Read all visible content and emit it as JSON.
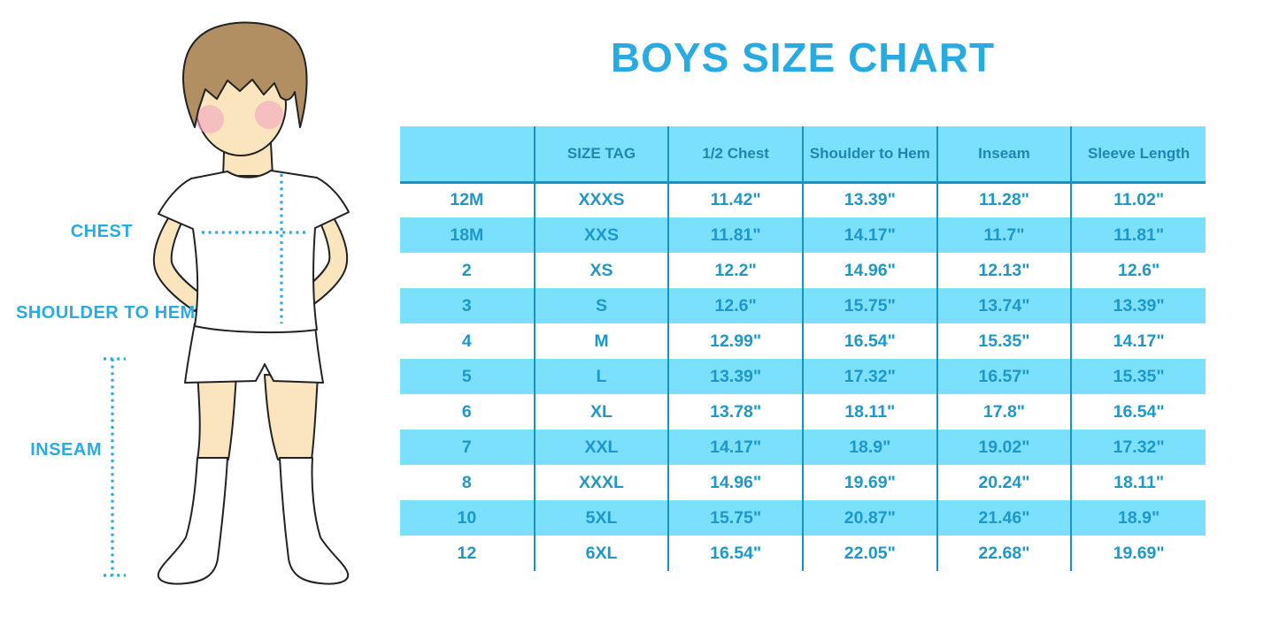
{
  "title": "BOYS SIZE CHART",
  "figure_labels": {
    "chest": "CHEST",
    "shoulder_to_hem": "SHOULDER TO HEM",
    "inseam": "INSEAM"
  },
  "chart_data": {
    "type": "table",
    "title": "BOYS SIZE CHART",
    "columns": [
      "",
      "SIZE TAG",
      "1/2 Chest",
      "Shoulder to Hem",
      "Inseam",
      "Sleeve Length"
    ],
    "rows": [
      [
        "12M",
        "XXXS",
        "11.42\"",
        "13.39\"",
        "11.28\"",
        "11.02\""
      ],
      [
        "18M",
        "XXS",
        "11.81\"",
        "14.17\"",
        "11.7\"",
        "11.81\""
      ],
      [
        "2",
        "XS",
        "12.2\"",
        "14.96\"",
        "12.13\"",
        "12.6\""
      ],
      [
        "3",
        "S",
        "12.6\"",
        "15.75\"",
        "13.74\"",
        "13.39\""
      ],
      [
        "4",
        "M",
        "12.99\"",
        "16.54\"",
        "15.35\"",
        "14.17\""
      ],
      [
        "5",
        "L",
        "13.39\"",
        "17.32\"",
        "16.57\"",
        "15.35\""
      ],
      [
        "6",
        "XL",
        "13.78\"",
        "18.11\"",
        "17.8\"",
        "16.54\""
      ],
      [
        "7",
        "XXL",
        "14.17\"",
        "18.9\"",
        "19.02\"",
        "17.32\""
      ],
      [
        "8",
        "XXXL",
        "14.96\"",
        "19.69\"",
        "20.24\"",
        "18.11\""
      ],
      [
        "10",
        "5XL",
        "15.75\"",
        "20.87\"",
        "21.46\"",
        "18.9\""
      ],
      [
        "12",
        "6XL",
        "16.54\"",
        "22.05\"",
        "22.68\"",
        "19.69\""
      ]
    ],
    "layout": {
      "striped_rows": "alternating starting row 2",
      "grid": "vertical dividers + header underline only"
    }
  },
  "colors": {
    "accent_blue": "#29ABE2",
    "stripe_cyan": "#7BE0FB",
    "divider_teal": "#1792C2",
    "header_text": "#1F86B2",
    "body_text": "#1F97CB",
    "skin": "#FAE5BF",
    "hair_brown": "#B28F62",
    "blush_pink": "#F3A9BE",
    "outline": "#222222"
  }
}
